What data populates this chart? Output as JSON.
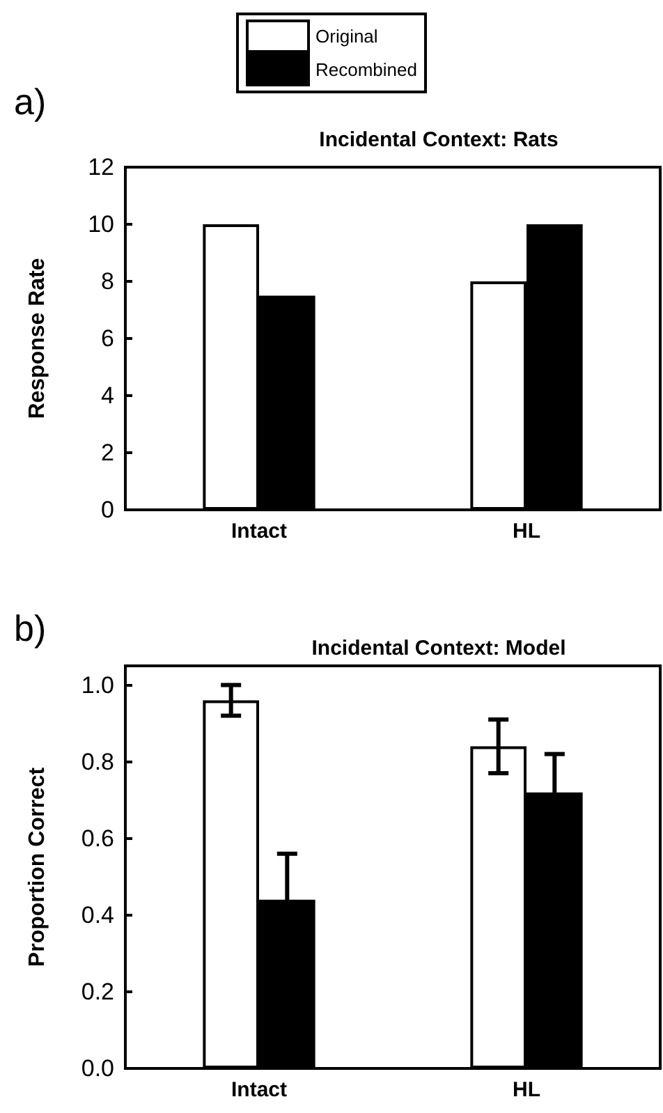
{
  "chart_data": [
    {
      "type": "bar",
      "title": "Incidental Context: Rats",
      "ylabel": "Response Rate",
      "annotations": [
        "a)"
      ],
      "categories": [
        "Intact",
        "HL"
      ],
      "series": [
        {
          "name": "Original",
          "color": "#ffffff",
          "values": [
            10,
            8
          ]
        },
        {
          "name": "Recombined",
          "color": "#000000",
          "values": [
            7.5,
            10
          ]
        }
      ],
      "ylim": [
        0,
        12
      ],
      "yticks": [
        0,
        2,
        4,
        6,
        8,
        10,
        12
      ],
      "grid": false,
      "legend": "top"
    },
    {
      "type": "bar",
      "title": "Incidental Context: Model",
      "ylabel": "Proportion Correct",
      "annotations": [
        "b)"
      ],
      "categories": [
        "Intact",
        "HL"
      ],
      "series": [
        {
          "color": "#ffffff",
          "values": [
            0.96,
            0.84
          ],
          "errors": [
            0.04,
            0.07
          ]
        },
        {
          "color": "#000000",
          "values": [
            0.44,
            0.72
          ],
          "errors": [
            0.12,
            0.1
          ]
        }
      ],
      "ylim": [
        0,
        1.05
      ],
      "yticks": [
        {
          "value": 0,
          "label": "0.0"
        },
        {
          "value": 0.2,
          "label": "0.2"
        },
        {
          "value": 0.4,
          "label": "0.4"
        },
        {
          "value": 0.6,
          "label": "0.6"
        },
        {
          "value": 0.8,
          "label": "0.8"
        },
        {
          "value": 1,
          "label": "1.0"
        }
      ],
      "grid": false,
      "legend": false
    }
  ]
}
